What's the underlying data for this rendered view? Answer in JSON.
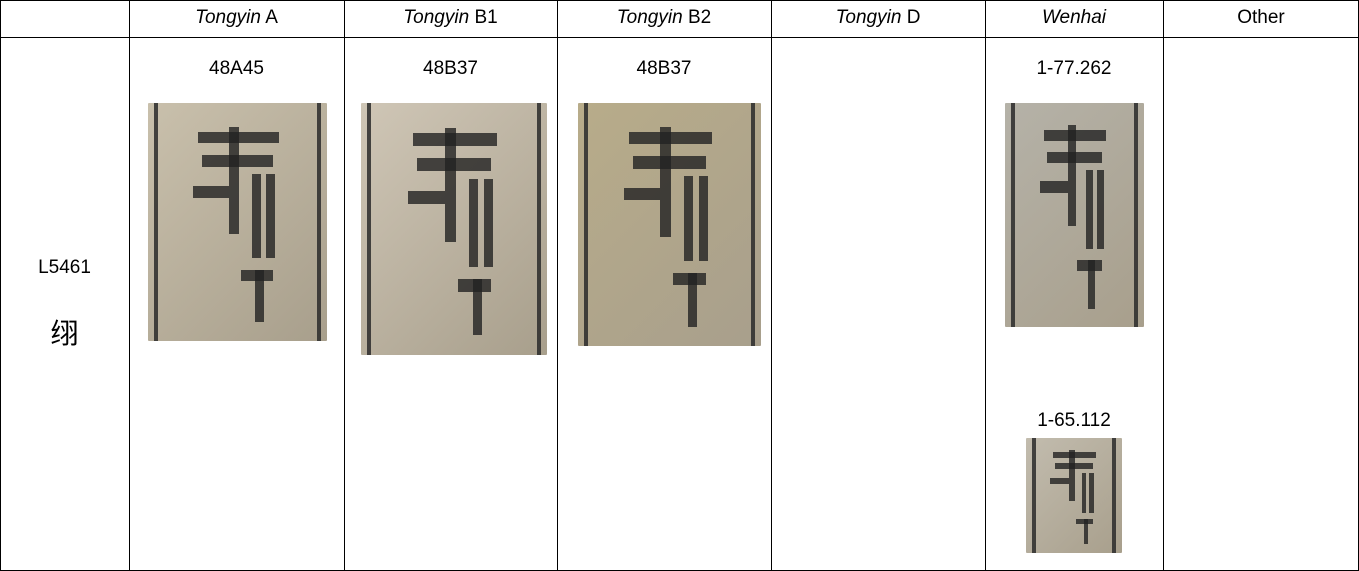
{
  "table": {
    "header": [
      {
        "italic": "Tongyin",
        "plain": "A"
      },
      {
        "italic": "Tongyin",
        "plain": "B1"
      },
      {
        "italic": "Tongyin",
        "plain": "B2"
      },
      {
        "italic": "Tongyin",
        "plain": "D"
      },
      {
        "italic": "Wenhai"
      },
      {
        "plain": "Other"
      }
    ],
    "row": {
      "label": "L5461",
      "glyph": "䌻",
      "cells": [
        [
          "48A45"
        ],
        [
          "48B37"
        ],
        [
          "48B37"
        ],
        [],
        [
          "1-77.262",
          "1-65.112"
        ],
        []
      ]
    }
  }
}
